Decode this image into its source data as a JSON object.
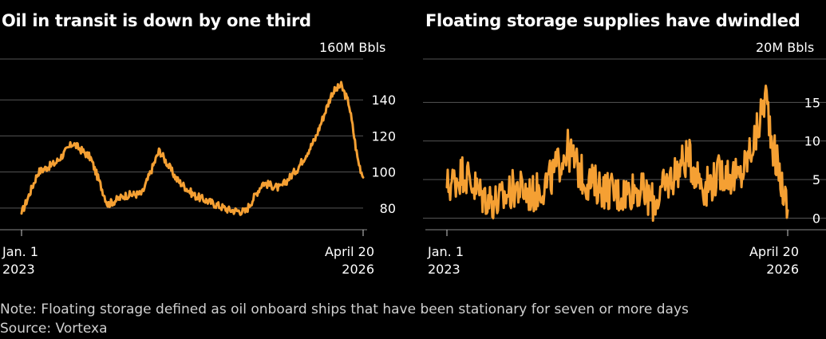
{
  "charts": [
    {
      "title": "Oil in transit is down by one third",
      "unit_label": "160M Bbls"
    },
    {
      "title": "Floating storage supplies have dwindled",
      "unit_label": "20M Bbls"
    }
  ],
  "notes": {
    "note": "Note: Floating storage defined as oil onboard ships that have been stationary for seven or more days",
    "source": "Source: Vortexa"
  },
  "chart_data": [
    {
      "type": "line",
      "title": "Oil in transit is down by one third",
      "unit": "160M Bbls",
      "series_color": "#f5a033",
      "grid": true,
      "ylim": [
        68,
        160
      ],
      "y_ticks": [
        80,
        100,
        120,
        140
      ],
      "x_tick_labels": [
        [
          "Jan. 1",
          "2023"
        ],
        [
          "April 20",
          "2026"
        ]
      ],
      "x": [
        "2023-01-01",
        "2023-03-01",
        "2023-05-01",
        "2023-07-01",
        "2023-09-01",
        "2023-11-01",
        "2024-01-01",
        "2024-03-01",
        "2024-05-01",
        "2024-07-01",
        "2024-09-01",
        "2024-11-01",
        "2025-01-01",
        "2025-03-01",
        "2025-05-01",
        "2025-07-01",
        "2025-09-01",
        "2025-11-01",
        "2026-01-01",
        "2026-02-01",
        "2026-03-01",
        "2026-04-01",
        "2026-04-20"
      ],
      "values": [
        77,
        100,
        105,
        116,
        108,
        82,
        87,
        88,
        112,
        96,
        87,
        83,
        79,
        78,
        94,
        91,
        102,
        118,
        144,
        148,
        138,
        107,
        97
      ]
    },
    {
      "type": "line",
      "title": "Floating storage supplies have dwindled",
      "unit": "20M Bbls",
      "series_color": "#f5a033",
      "grid": true,
      "ylim": [
        -1.5,
        20
      ],
      "y_ticks": [
        0,
        5,
        10,
        15
      ],
      "x_tick_labels": [
        [
          "Jan. 1",
          "2023"
        ],
        [
          "April 20",
          "2026"
        ]
      ],
      "x": [
        "2023-01-01",
        "2023-03-01",
        "2023-05-01",
        "2023-07-01",
        "2023-09-01",
        "2023-11-01",
        "2024-01-01",
        "2024-03-01",
        "2024-05-01",
        "2024-07-01",
        "2024-09-01",
        "2024-11-01",
        "2025-01-01",
        "2025-03-01",
        "2025-05-01",
        "2025-07-01",
        "2025-09-01",
        "2025-11-01",
        "2026-01-01",
        "2026-02-01",
        "2026-03-01",
        "2026-04-01",
        "2026-04-20"
      ],
      "values": [
        4,
        6,
        3,
        2,
        4,
        3,
        5,
        9,
        5,
        4,
        3,
        4,
        2,
        5,
        8,
        4,
        6,
        5,
        11,
        16,
        9,
        4,
        1
      ]
    }
  ]
}
